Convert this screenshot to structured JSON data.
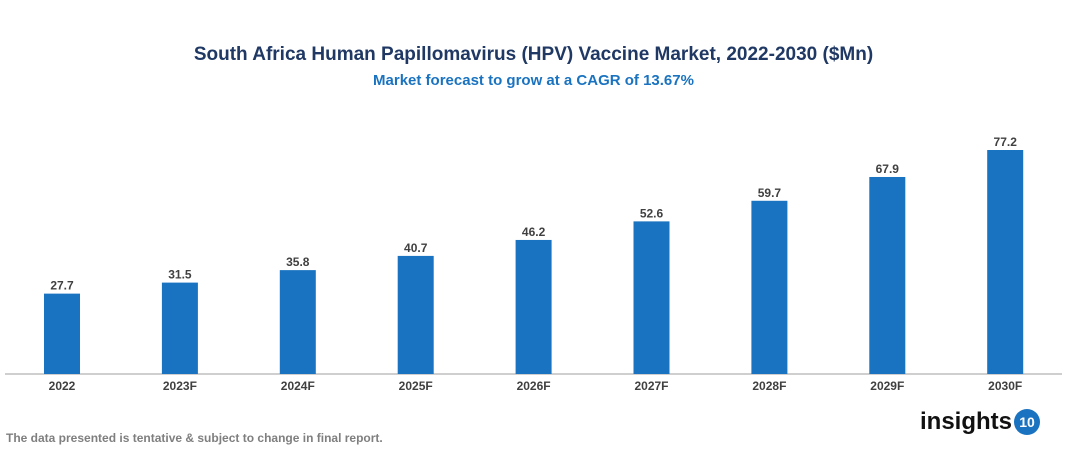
{
  "chart_data": {
    "type": "bar",
    "title": "South Africa Human Papillomavirus (HPV) Vaccine Market, 2022-2030 ($Mn)",
    "subtitle": "Market forecast to grow at a CAGR of 13.67%",
    "categories": [
      "2022",
      "2023F",
      "2024F",
      "2025F",
      "2026F",
      "2027F",
      "2028F",
      "2029F",
      "2030F"
    ],
    "values": [
      27.7,
      31.5,
      35.8,
      40.7,
      46.2,
      52.6,
      59.7,
      67.9,
      77.2
    ],
    "ylim": [
      0,
      80
    ],
    "grid": false,
    "bar_color": "#1a73c0"
  },
  "footer": "The data presented is tentative & subject to change in final report.",
  "logo": {
    "text": "insights",
    "badge": "10"
  }
}
